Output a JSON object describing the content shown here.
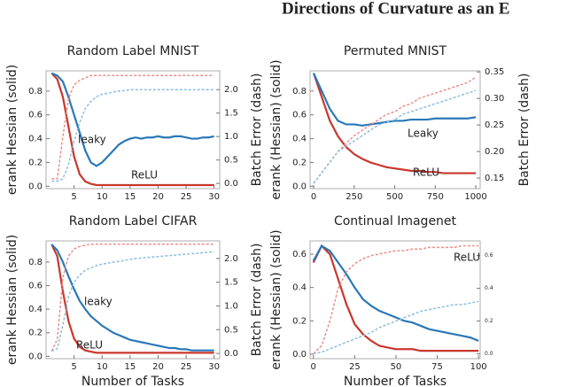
{
  "page_title": "Directions of Curvature as an E",
  "chart_data": [
    {
      "type": "line",
      "title": "Random Label MNIST",
      "y_label": "erank Hessian (solid)",
      "y2_label": "Batch Error (dash)",
      "x": [
        1,
        2,
        3,
        4,
        5,
        6,
        7,
        8,
        9,
        10,
        11,
        12,
        13,
        14,
        15,
        16,
        17,
        18,
        19,
        20,
        21,
        22,
        23,
        24,
        25,
        26,
        27,
        28,
        29,
        30
      ],
      "xlim": [
        0,
        31
      ],
      "xticks": [
        5,
        10,
        15,
        20,
        25,
        30
      ],
      "ylim": [
        -0.02,
        0.97
      ],
      "yticks": [
        {
          "value": 0,
          "label": "0.0"
        },
        0.2,
        0.4,
        0.6,
        0.8
      ],
      "y2lim": [
        -0.11,
        2.4
      ],
      "y2ticks": [
        {
          "value": 0,
          "label": "0.0"
        },
        0.5,
        {
          "value": 1,
          "label": "1.0"
        },
        1.5,
        {
          "value": 2,
          "label": "2.0"
        }
      ],
      "series": [
        {
          "color": "#c8372d",
          "values": [
            0.95,
            0.9,
            0.75,
            0.5,
            0.25,
            0.1,
            0.04,
            0.02,
            0.01,
            0.01,
            0.01,
            0.01,
            0.01,
            0.01,
            0.01,
            0.01,
            0.01,
            0.01,
            0.01,
            0.01,
            0.01,
            0.01,
            0.01,
            0.01,
            0.01,
            0.01,
            0.01,
            0.01,
            0.01,
            0.01
          ]
        },
        {
          "color": "#2a78b8",
          "values": [
            0.95,
            0.93,
            0.88,
            0.75,
            0.6,
            0.45,
            0.3,
            0.2,
            0.17,
            0.2,
            0.25,
            0.3,
            0.35,
            0.38,
            0.4,
            0.41,
            0.4,
            0.41,
            0.41,
            0.42,
            0.41,
            0.41,
            0.42,
            0.42,
            0.41,
            0.4,
            0.4,
            0.41,
            0.41,
            0.42
          ]
        },
        {
          "color": "#e99088",
          "axis": "y2",
          "linestyle": "dashed",
          "values": [
            0.1,
            0.1,
            1.0,
            1.8,
            2.1,
            2.2,
            2.25,
            2.3,
            2.3,
            2.3,
            2.3,
            2.3,
            2.3,
            2.3,
            2.3,
            2.3,
            2.3,
            2.3,
            2.3,
            2.3,
            2.3,
            2.3,
            2.3,
            2.3,
            2.3,
            2.3,
            2.3,
            2.3,
            2.3,
            2.3
          ]
        },
        {
          "color": "#8cbde3",
          "axis": "y2",
          "linestyle": "dashed",
          "values": [
            0.05,
            0.05,
            0.1,
            0.4,
            0.9,
            1.3,
            1.6,
            1.75,
            1.85,
            1.9,
            1.92,
            1.95,
            1.97,
            1.98,
            2.0,
            2.0,
            2.0,
            2.0,
            2.0,
            2.0,
            2.0,
            2.0,
            2.0,
            2.0,
            2.0,
            2.0,
            2.0,
            2.0,
            2.0,
            2.0
          ]
        }
      ],
      "annotations": [
        {
          "text": "leaky",
          "color": "#2a78b8"
        },
        {
          "text": "ReLU",
          "color": "#c8372d"
        }
      ]
    },
    {
      "type": "line",
      "title": "Permuted MNIST",
      "y_label": "erank (Hessian) (solid)",
      "y2_label": "Batch Error (dash)",
      "x": [
        0,
        50,
        100,
        150,
        200,
        250,
        300,
        350,
        400,
        450,
        500,
        550,
        600,
        650,
        700,
        750,
        800,
        850,
        900,
        950,
        1000
      ],
      "xlim": [
        -22,
        1027
      ],
      "xticks": [
        0,
        250,
        500,
        750,
        1000
      ],
      "ylim": [
        -0.02,
        0.97
      ],
      "yticks": [
        {
          "value": 0,
          "label": "0.0"
        },
        0.2,
        0.4,
        0.6,
        0.8
      ],
      "y2lim": [
        0.13,
        0.352
      ],
      "y2ticks": [
        0.15,
        {
          "value": 0.2,
          "label": "0.20"
        },
        0.25,
        {
          "value": 0.3,
          "label": "0.30"
        },
        0.35
      ],
      "series": [
        {
          "color": "#c8372d",
          "values": [
            0.95,
            0.75,
            0.55,
            0.42,
            0.33,
            0.27,
            0.23,
            0.2,
            0.18,
            0.16,
            0.15,
            0.14,
            0.13,
            0.13,
            0.12,
            0.12,
            0.11,
            0.11,
            0.11,
            0.11,
            0.11
          ]
        },
        {
          "color": "#2a78b8",
          "values": [
            0.95,
            0.8,
            0.65,
            0.55,
            0.52,
            0.52,
            0.51,
            0.52,
            0.53,
            0.54,
            0.55,
            0.55,
            0.56,
            0.56,
            0.56,
            0.57,
            0.57,
            0.57,
            0.57,
            0.57,
            0.58
          ]
        },
        {
          "color": "#e99088",
          "axis": "y2",
          "linestyle": "dashed",
          "values": [
            0.14,
            0.16,
            0.18,
            0.2,
            0.215,
            0.23,
            0.24,
            0.25,
            0.26,
            0.27,
            0.275,
            0.285,
            0.29,
            0.3,
            0.305,
            0.31,
            0.315,
            0.32,
            0.325,
            0.33,
            0.34
          ]
        },
        {
          "color": "#8cbde3",
          "axis": "y2",
          "linestyle": "dashed",
          "values": [
            0.14,
            0.16,
            0.18,
            0.2,
            0.21,
            0.22,
            0.23,
            0.24,
            0.25,
            0.255,
            0.26,
            0.27,
            0.275,
            0.28,
            0.285,
            0.29,
            0.295,
            0.3,
            0.305,
            0.31,
            0.315
          ]
        }
      ],
      "annotations": [
        {
          "text": "Leaky",
          "color": "#2a78b8"
        },
        {
          "text": "ReLU",
          "color": "#c8372d"
        }
      ]
    },
    {
      "type": "line",
      "title": "Random Label CIFAR",
      "x_label": "Number of Tasks",
      "y_label": "erank Hessian (solid)",
      "y2_label": "Batch Error (dash)",
      "x": [
        1,
        2,
        3,
        4,
        5,
        6,
        7,
        8,
        9,
        10,
        11,
        12,
        13,
        14,
        15,
        16,
        17,
        18,
        19,
        20,
        21,
        22,
        23,
        24,
        25,
        26,
        27,
        28,
        29,
        30
      ],
      "xlim": [
        0,
        31
      ],
      "xticks": [
        5,
        10,
        15,
        20,
        25,
        30
      ],
      "ylim": [
        -0.02,
        0.98
      ],
      "yticks": [
        {
          "value": 0,
          "label": "0.0"
        },
        0.2,
        0.4,
        0.6,
        0.8
      ],
      "y2lim": [
        -0.11,
        2.37
      ],
      "y2ticks": [
        {
          "value": 0,
          "label": "0.0"
        },
        0.5,
        {
          "value": 1,
          "label": "1.0"
        },
        1.5,
        {
          "value": 2,
          "label": "2.0"
        }
      ],
      "series": [
        {
          "color": "#c8372d",
          "values": [
            0.95,
            0.85,
            0.55,
            0.3,
            0.15,
            0.08,
            0.05,
            0.04,
            0.03,
            0.03,
            0.03,
            0.03,
            0.03,
            0.03,
            0.03,
            0.03,
            0.03,
            0.03,
            0.03,
            0.03,
            0.03,
            0.03,
            0.03,
            0.03,
            0.03,
            0.03,
            0.03,
            0.03,
            0.03,
            0.03
          ]
        },
        {
          "color": "#2a78b8",
          "values": [
            0.95,
            0.9,
            0.8,
            0.68,
            0.57,
            0.47,
            0.4,
            0.34,
            0.3,
            0.26,
            0.23,
            0.2,
            0.18,
            0.16,
            0.14,
            0.13,
            0.12,
            0.11,
            0.1,
            0.09,
            0.08,
            0.07,
            0.07,
            0.06,
            0.06,
            0.05,
            0.05,
            0.05,
            0.05,
            0.05
          ]
        },
        {
          "color": "#e99088",
          "axis": "y2",
          "linestyle": "dashed",
          "values": [
            0.05,
            0.3,
            1.6,
            2.05,
            2.2,
            2.25,
            2.28,
            2.3,
            2.3,
            2.3,
            2.3,
            2.3,
            2.3,
            2.3,
            2.3,
            2.3,
            2.3,
            2.3,
            2.3,
            2.3,
            2.3,
            2.3,
            2.3,
            2.3,
            2.3,
            2.3,
            2.3,
            2.3,
            2.3,
            2.3
          ]
        },
        {
          "color": "#8cbde3",
          "axis": "y2",
          "linestyle": "dashed",
          "values": [
            0.05,
            0.1,
            0.6,
            1.2,
            1.5,
            1.65,
            1.75,
            1.8,
            1.85,
            1.88,
            1.9,
            1.92,
            1.94,
            1.96,
            1.98,
            2.0,
            2.01,
            2.02,
            2.03,
            2.04,
            2.05,
            2.06,
            2.07,
            2.08,
            2.09,
            2.1,
            2.11,
            2.12,
            2.13,
            2.14
          ]
        }
      ],
      "annotations": [
        {
          "text": "leaky",
          "color": "#2a78b8"
        },
        {
          "text": "ReLU",
          "color": "#c8372d"
        }
      ]
    },
    {
      "type": "line",
      "title": "Continual Imagenet",
      "x_label": "Number of Tasks",
      "y_label": "erank (Hessian) (solid)",
      "x": [
        0,
        5,
        10,
        15,
        20,
        25,
        30,
        35,
        40,
        45,
        50,
        55,
        60,
        65,
        70,
        75,
        80,
        85,
        90,
        95,
        100
      ],
      "xlim": [
        -2,
        101
      ],
      "xticks": [
        0,
        25,
        50,
        75,
        100
      ],
      "ylim": [
        -0.027,
        0.68
      ],
      "yticks": [
        {
          "value": 0,
          "label": "0.0"
        },
        0.2,
        0.4,
        0.6
      ],
      "y2lim": [
        -0.03,
        0.69
      ],
      "y2ticks": [
        {
          "value": 0,
          "label": "0.0"
        },
        0.2,
        0.4,
        0.6
      ],
      "series": [
        {
          "color": "#c8372d",
          "values": [
            0.55,
            0.65,
            0.6,
            0.45,
            0.3,
            0.18,
            0.12,
            0.08,
            0.05,
            0.04,
            0.03,
            0.03,
            0.03,
            0.02,
            0.02,
            0.02,
            0.02,
            0.02,
            0.02,
            0.02,
            0.02
          ]
        },
        {
          "color": "#2a78b8",
          "values": [
            0.56,
            0.65,
            0.62,
            0.55,
            0.48,
            0.4,
            0.33,
            0.29,
            0.26,
            0.24,
            0.22,
            0.2,
            0.19,
            0.17,
            0.15,
            0.14,
            0.13,
            0.12,
            0.11,
            0.1,
            0.08
          ]
        },
        {
          "color": "#e99088",
          "axis": "y2",
          "linestyle": "dashed",
          "values": [
            0.0,
            0.05,
            0.2,
            0.4,
            0.5,
            0.55,
            0.58,
            0.6,
            0.61,
            0.62,
            0.63,
            0.63,
            0.64,
            0.64,
            0.65,
            0.65,
            0.65,
            0.65,
            0.66,
            0.66,
            0.66
          ]
        },
        {
          "color": "#8cbde3",
          "axis": "y2",
          "linestyle": "dashed",
          "values": [
            0.0,
            0.01,
            0.03,
            0.05,
            0.07,
            0.09,
            0.11,
            0.13,
            0.16,
            0.18,
            0.2,
            0.22,
            0.24,
            0.26,
            0.27,
            0.28,
            0.29,
            0.3,
            0.3,
            0.31,
            0.32
          ]
        }
      ],
      "annotations": [
        {
          "text": "ReLU",
          "color": "#c8372d"
        }
      ]
    }
  ]
}
